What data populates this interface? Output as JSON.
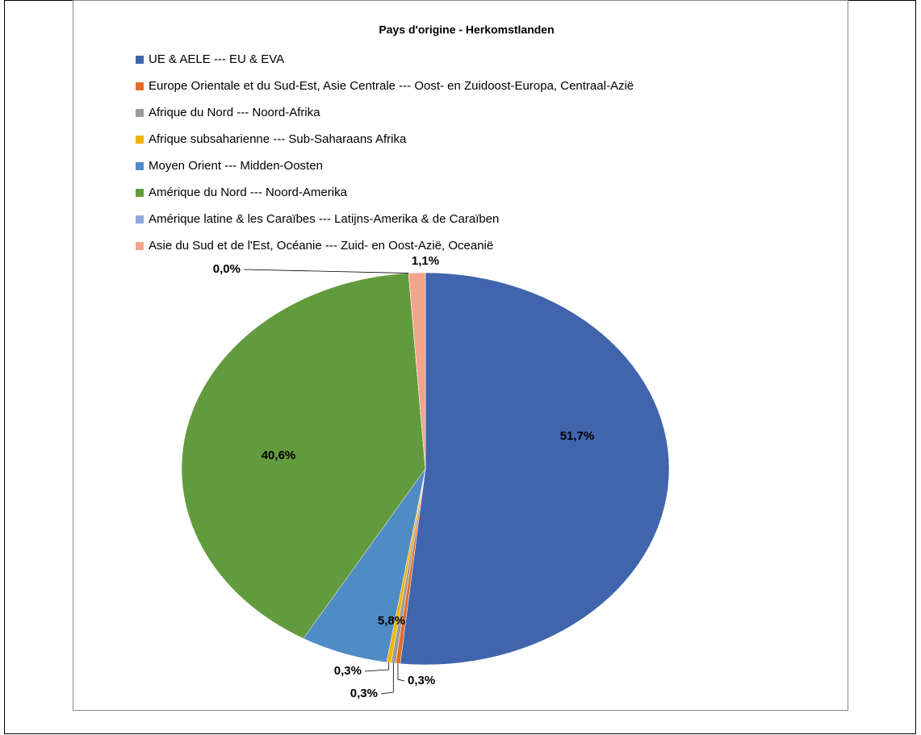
{
  "chart_data": {
    "type": "pie",
    "title": "Pays d'origine - Herkomstlanden",
    "categories": [
      "UE & AELE --- EU & EVA",
      "Europe Orientale et du Sud-Est, Asie Centrale --- Oost- en Zuidoost-Europa, Centraal-Azië",
      "Afrique du Nord --- Noord-Afrika",
      "Afrique subsaharienne --- Sub-Saharaans Afrika",
      "Moyen Orient --- Midden-Oosten",
      "Amérique du Nord --- Noord-Amerika",
      "Amérique latine & les Caraïbes --- Latijns-Amerika & de Caraïben",
      "Asie du Sud et de l'Est, Océanie --- Zuid- en Oost-Azië, Oceanië"
    ],
    "values": [
      51.7,
      0.3,
      0.3,
      0.3,
      5.8,
      40.6,
      0.0,
      1.1
    ],
    "value_labels": [
      "51,7%",
      "0,3%",
      "0,3%",
      "0,3%",
      "5,8%",
      "40,6%",
      "0,0%",
      "1,1%"
    ],
    "colors": [
      "#4065ad",
      "#e36c2a",
      "#9b9b9b",
      "#f0b400",
      "#4f8bc4",
      "#629b3e",
      "#8fa8dc",
      "#f2a58a"
    ],
    "legend": "top"
  }
}
